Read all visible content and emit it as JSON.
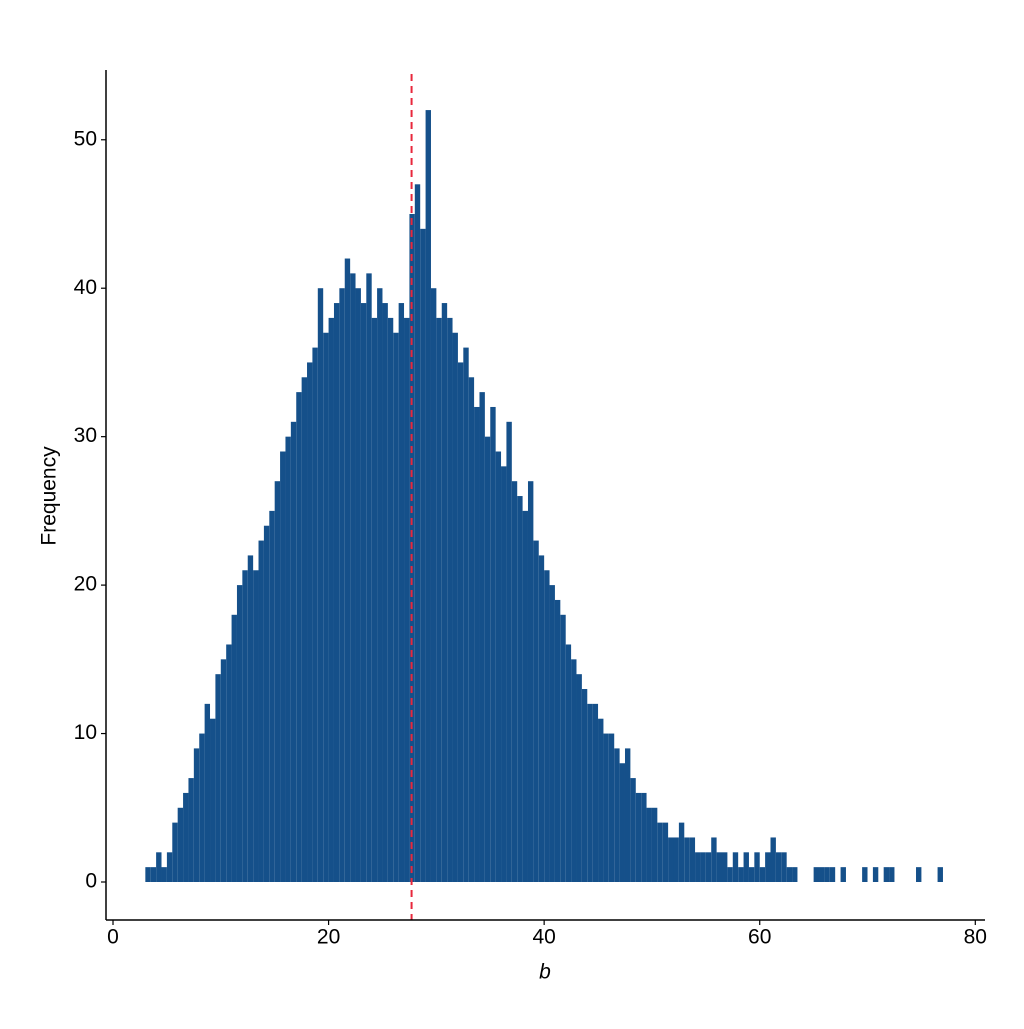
{
  "chart_data": {
    "type": "histogram",
    "x_label": "b",
    "y_label": "Frequency",
    "color": "#15508a",
    "mean_line": {
      "value": 27.7,
      "color": "#e8283c"
    },
    "bins": [
      3,
      3.5,
      4,
      4.5,
      5,
      5.5,
      6,
      6.5,
      7,
      7.5,
      8,
      8.5,
      9,
      9.5,
      10,
      10.5,
      11,
      11.5,
      12,
      12.5,
      13,
      13.5,
      14,
      14.5,
      15,
      15.5,
      16,
      16.5,
      17,
      17.5,
      18,
      18.5,
      19,
      19.5,
      20,
      20.5,
      21,
      21.5,
      22,
      22.5,
      23,
      23.5,
      24,
      24.5,
      25,
      25.5,
      26,
      26.5,
      27,
      27.5,
      28,
      28.5,
      29,
      29.5,
      30,
      30.5,
      31,
      31.5,
      32,
      32.5,
      33,
      33.5,
      34,
      34.5,
      35,
      35.5,
      36,
      36.5,
      37,
      37.5,
      38,
      38.5,
      39,
      39.5,
      40,
      40.5,
      41,
      41.5,
      42,
      42.5,
      43,
      43.5,
      44,
      44.5,
      45,
      45.5,
      46,
      46.5,
      47,
      47.5,
      48,
      48.5,
      49,
      49.5,
      50,
      50.5,
      51,
      51.5,
      52,
      52.5,
      53,
      53.5,
      54,
      54.5,
      55,
      55.5,
      56,
      56.5,
      57,
      57.5,
      58,
      58.5,
      59,
      59.5,
      60,
      60.5,
      61,
      61.5,
      62,
      62.5,
      63,
      63.5,
      64,
      64.5,
      65,
      65.5,
      66,
      66.5,
      67,
      67.5,
      68,
      68.5,
      69,
      69.5,
      70,
      70.5,
      71,
      71.5,
      72,
      72.5,
      73,
      73.5,
      74,
      74.5,
      75,
      75.5,
      76,
      76.5,
      77
    ],
    "values": [
      1,
      1,
      2,
      1,
      2,
      4,
      5,
      6,
      7,
      9,
      10,
      12,
      11,
      14,
      15,
      16,
      18,
      20,
      21,
      22,
      21,
      23,
      24,
      25,
      27,
      29,
      30,
      31,
      33,
      34,
      35,
      36,
      40,
      37,
      38,
      39,
      40,
      42,
      41,
      40,
      39,
      41,
      38,
      40,
      39,
      38,
      37,
      39,
      38,
      45,
      47,
      44,
      52,
      40,
      38,
      39,
      38,
      37,
      35,
      36,
      34,
      32,
      33,
      30,
      32,
      29,
      28,
      31,
      27,
      26,
      25,
      27,
      23,
      22,
      21,
      20,
      19,
      18,
      16,
      15,
      14,
      13,
      12,
      12,
      11,
      10,
      10,
      9,
      8,
      9,
      7,
      6,
      6,
      5,
      5,
      4,
      4,
      3,
      3,
      4,
      3,
      3,
      2,
      2,
      2,
      3,
      2,
      2,
      1,
      2,
      1,
      2,
      1,
      2,
      1,
      2,
      3,
      2,
      2,
      1,
      1,
      0,
      0,
      0,
      1,
      1,
      1,
      1,
      0,
      1,
      0,
      0,
      0,
      1,
      0,
      1,
      0,
      1,
      1,
      0,
      0,
      0,
      0,
      1,
      0,
      0,
      0,
      1
    ],
    "xlim": [
      -0.65,
      80.9
    ],
    "ylim": [
      -2.56,
      54.7
    ],
    "xticks": [
      0,
      20,
      40,
      60,
      80
    ],
    "yticks": [
      0,
      10,
      20,
      30,
      40,
      50
    ]
  }
}
